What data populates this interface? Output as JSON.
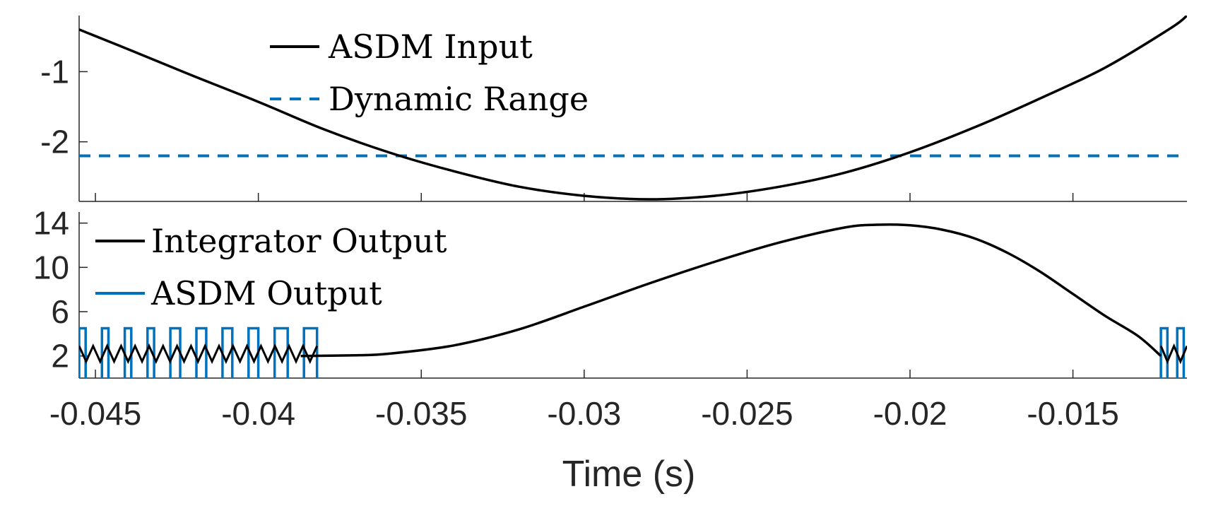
{
  "chart_data": [
    {
      "id": "top-panel",
      "type": "line",
      "xlabel": "",
      "ylabel": "",
      "xlim": [
        -0.0455,
        -0.0115
      ],
      "ylim": [
        -2.85,
        -0.2
      ],
      "yticks": [
        -1,
        -2
      ],
      "ytick_labels": [
        "-1",
        "-2"
      ],
      "legend_position": "top",
      "series": [
        {
          "name": "ASDM Input",
          "color": "#000000",
          "style": "solid",
          "x": [
            -0.0455,
            -0.044,
            -0.042,
            -0.04,
            -0.038,
            -0.036,
            -0.034,
            -0.032,
            -0.03,
            -0.028,
            -0.026,
            -0.024,
            -0.022,
            -0.02,
            -0.018,
            -0.016,
            -0.014,
            -0.012,
            -0.0115
          ],
          "y": [
            -0.4,
            -0.68,
            -1.06,
            -1.43,
            -1.82,
            -2.15,
            -2.42,
            -2.64,
            -2.77,
            -2.82,
            -2.77,
            -2.64,
            -2.44,
            -2.15,
            -1.79,
            -1.38,
            -0.94,
            -0.38,
            -0.2
          ]
        },
        {
          "name": "Dynamic Range",
          "color": "#0072BD",
          "style": "dashed",
          "x": [
            -0.0455,
            -0.0115
          ],
          "y": [
            -2.2,
            -2.2
          ]
        }
      ]
    },
    {
      "id": "bottom-panel",
      "type": "line",
      "xlabel": "Time (s)",
      "ylabel": "",
      "xlim": [
        -0.0455,
        -0.0115
      ],
      "ylim": [
        0,
        15
      ],
      "yticks": [
        2,
        6,
        10,
        14
      ],
      "ytick_labels": [
        "2",
        "6",
        "10",
        "14"
      ],
      "xticks": [
        -0.045,
        -0.04,
        -0.035,
        -0.03,
        -0.025,
        -0.02,
        -0.015
      ],
      "xtick_labels": [
        "-0.045",
        "-0.04",
        "-0.035",
        "-0.03",
        "-0.025",
        "-0.02",
        "-0.015"
      ],
      "legend_position": "top-left",
      "series": [
        {
          "name": "Integrator Output",
          "color": "#000000",
          "style": "solid",
          "x": [
            -0.0387,
            -0.037,
            -0.036,
            -0.034,
            -0.032,
            -0.03,
            -0.028,
            -0.026,
            -0.024,
            -0.022,
            -0.021,
            -0.02,
            -0.019,
            -0.018,
            -0.017,
            -0.016,
            -0.015,
            -0.014,
            -0.013,
            -0.0123
          ],
          "y": [
            2.0,
            2.06,
            2.2,
            2.95,
            4.4,
            6.45,
            8.55,
            10.5,
            12.25,
            13.6,
            13.85,
            13.8,
            13.4,
            12.6,
            11.3,
            9.6,
            7.6,
            5.6,
            3.8,
            2.0
          ]
        },
        {
          "name": "ASDM Output",
          "color": "#0072BD",
          "style": "solid",
          "type": "pulse-train",
          "low": 0,
          "high": 4.5,
          "edges": [
            -0.0455,
            -0.0453,
            -0.0448,
            -0.0446,
            -0.0441,
            -0.0439,
            -0.0434,
            -0.0432,
            -0.0427,
            -0.0424,
            -0.0419,
            -0.0416,
            -0.0411,
            -0.0408,
            -0.0403,
            -0.04,
            -0.0395,
            -0.0391,
            -0.0386,
            -0.0382,
            -0.0123,
            -0.0121,
            -0.0118,
            -0.0116
          ]
        },
        {
          "name": "Integrator Output (switching)",
          "color": "#000000",
          "style": "solid",
          "type": "sawtooth",
          "center": 2.2,
          "amplitude": 0.7,
          "segments": [
            [
              -0.0455,
              -0.0382,
              34
            ],
            [
              -0.0123,
              -0.0115,
              4
            ]
          ]
        }
      ]
    }
  ]
}
